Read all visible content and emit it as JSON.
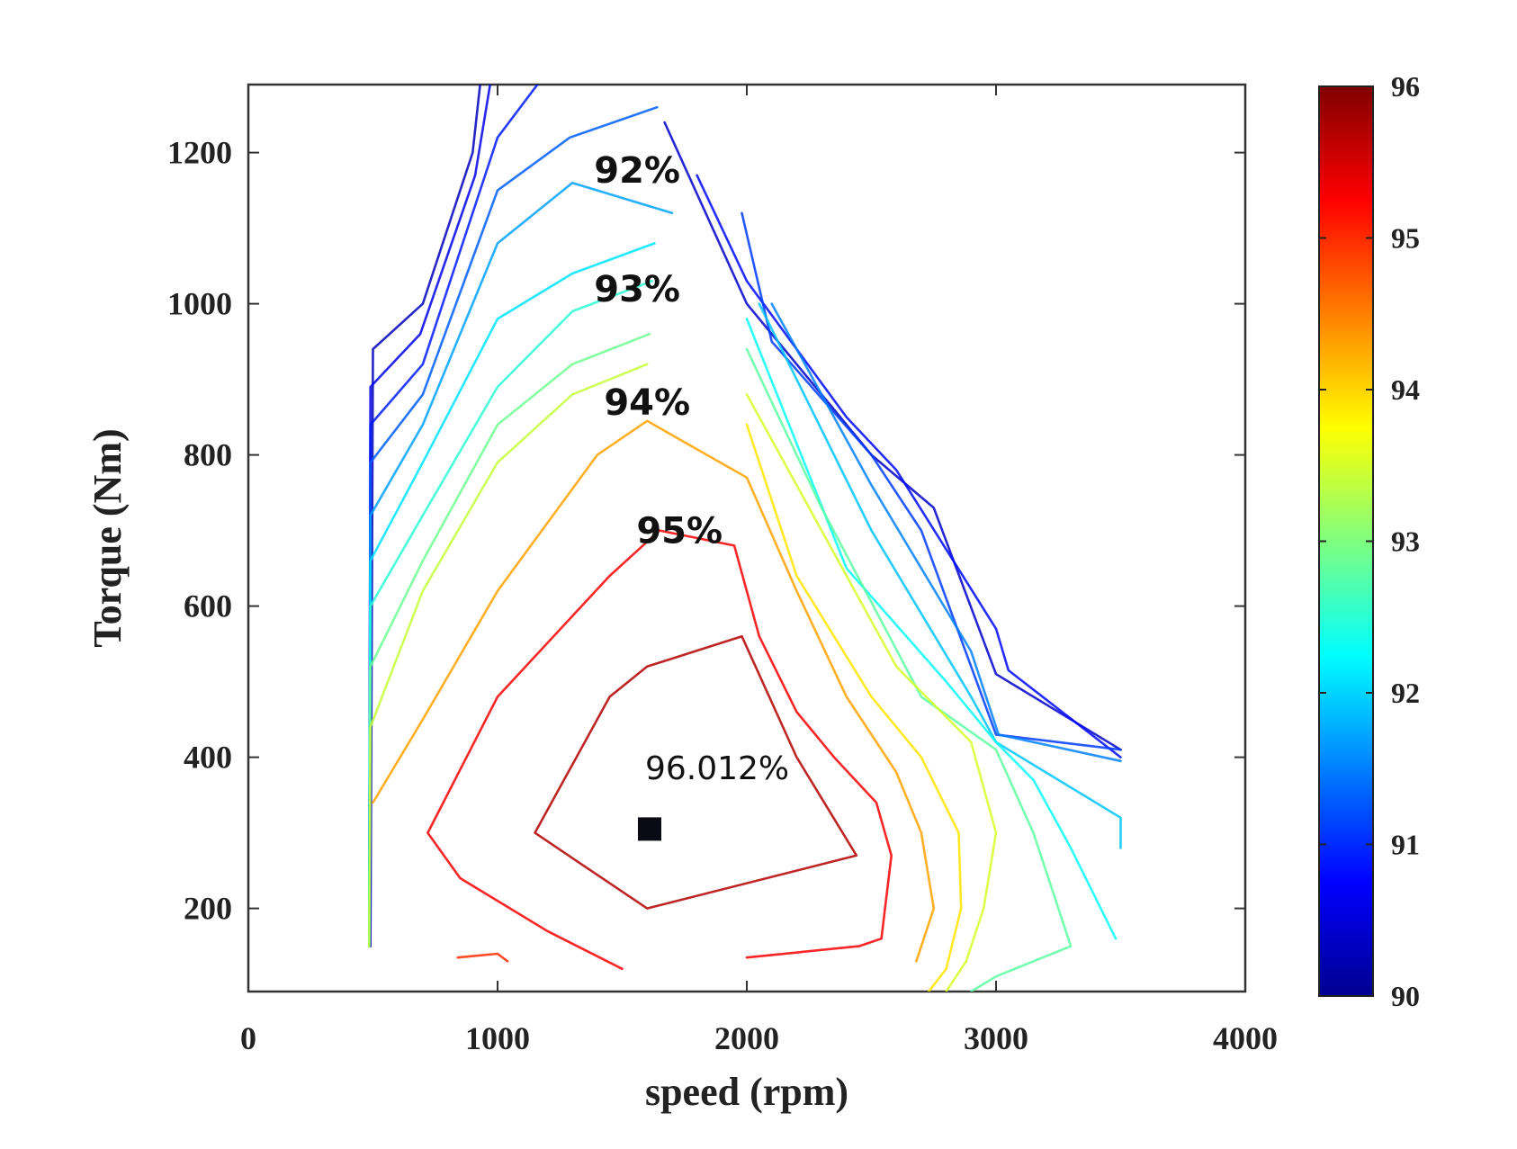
{
  "chart_data": {
    "type": "contour",
    "xlabel": "speed (rpm)",
    "ylabel": "Torque (Nm)",
    "xlim": [
      0,
      4000
    ],
    "ylim": [
      90,
      1290
    ],
    "xticks": [
      0,
      1000,
      2000,
      3000,
      4000
    ],
    "yticks": [
      200,
      400,
      600,
      800,
      1000,
      1200
    ],
    "colorbar": {
      "range": [
        90,
        96
      ],
      "ticks": [
        90,
        91,
        92,
        93,
        94,
        95,
        96
      ],
      "colormap": [
        "#00008f",
        "#0000ff",
        "#00ffff",
        "#ffff00",
        "#ff0000",
        "#800000"
      ]
    },
    "contour_labels": [
      {
        "text": "92%",
        "x": 1560,
        "y": 1177
      },
      {
        "text": "93%",
        "x": 1560,
        "y": 1020
      },
      {
        "text": "94%",
        "x": 1600,
        "y": 870
      },
      {
        "text": "95%",
        "x": 1730,
        "y": 700
      }
    ],
    "optimum": {
      "label": "96.012%",
      "x": 1610,
      "y": 305,
      "label_x": 1610,
      "label_y": 385
    },
    "contours": [
      {
        "level": 90.3,
        "points": [
          [
            930,
            1290
          ],
          [
            900,
            1200
          ],
          [
            700,
            1000
          ],
          [
            500,
            940
          ],
          [
            490,
            150
          ]
        ]
      },
      {
        "level": 90.6,
        "points": [
          [
            970,
            1290
          ],
          [
            910,
            1170
          ],
          [
            690,
            960
          ],
          [
            490,
            890
          ],
          [
            485,
            150
          ]
        ]
      },
      {
        "level": 90.9,
        "points": [
          [
            1160,
            1290
          ],
          [
            1000,
            1220
          ],
          [
            700,
            920
          ],
          [
            490,
            840
          ],
          [
            485,
            150
          ]
        ]
      },
      {
        "level": 91.3,
        "points": [
          [
            1640,
            1260
          ],
          [
            1290,
            1220
          ],
          [
            1000,
            1150
          ],
          [
            700,
            880
          ],
          [
            490,
            790
          ],
          [
            485,
            150
          ]
        ]
      },
      {
        "level": 91.7,
        "points": [
          [
            1700,
            1120
          ],
          [
            1300,
            1160
          ],
          [
            1000,
            1080
          ],
          [
            700,
            840
          ],
          [
            490,
            720
          ],
          [
            485,
            150
          ]
        ]
      },
      {
        "level": 92.1,
        "points": [
          [
            1630,
            1080
          ],
          [
            1300,
            1040
          ],
          [
            1000,
            980
          ],
          [
            700,
            790
          ],
          [
            490,
            660
          ],
          [
            485,
            150
          ]
        ]
      },
      {
        "level": 92.5,
        "points": [
          [
            1620,
            1030
          ],
          [
            1300,
            990
          ],
          [
            1000,
            890
          ],
          [
            700,
            720
          ],
          [
            490,
            600
          ],
          [
            485,
            150
          ]
        ]
      },
      {
        "level": 92.9,
        "points": [
          [
            1610,
            960
          ],
          [
            1300,
            920
          ],
          [
            1000,
            840
          ],
          [
            700,
            660
          ],
          [
            490,
            520
          ],
          [
            485,
            150
          ]
        ]
      },
      {
        "level": 93.4,
        "points": [
          [
            1600,
            920
          ],
          [
            1300,
            880
          ],
          [
            1000,
            790
          ],
          [
            700,
            620
          ],
          [
            490,
            440
          ],
          [
            485,
            150
          ]
        ]
      },
      {
        "level": 94.3,
        "points": [
          [
            500,
            340
          ],
          [
            700,
            450
          ],
          [
            1000,
            620
          ],
          [
            1400,
            800
          ],
          [
            1600,
            845
          ],
          [
            2000,
            770
          ],
          [
            2200,
            620
          ],
          [
            2400,
            480
          ],
          [
            2600,
            380
          ],
          [
            2700,
            300
          ],
          [
            2750,
            200
          ],
          [
            2680,
            130
          ]
        ]
      },
      {
        "level": 95.3,
        "points": [
          [
            1500,
            120
          ],
          [
            1200,
            170
          ],
          [
            850,
            240
          ],
          [
            720,
            300
          ],
          [
            1000,
            480
          ],
          [
            1450,
            640
          ],
          [
            1650,
            700
          ],
          [
            1950,
            680
          ],
          [
            2050,
            560
          ],
          [
            2200,
            460
          ],
          [
            2350,
            400
          ],
          [
            2520,
            340
          ],
          [
            2580,
            270
          ],
          [
            2540,
            160
          ],
          [
            2450,
            150
          ],
          [
            2000,
            135
          ]
        ]
      },
      {
        "level": 95.7,
        "points": [
          [
            1600,
            200
          ],
          [
            1150,
            300
          ],
          [
            1450,
            480
          ],
          [
            1600,
            520
          ],
          [
            1980,
            560
          ],
          [
            2200,
            400
          ],
          [
            2440,
            270
          ],
          [
            1600,
            200
          ]
        ]
      },
      {
        "level": 95.0,
        "points": [
          [
            840,
            135
          ],
          [
            1000,
            140
          ],
          [
            1040,
            130
          ]
        ]
      },
      {
        "level": 90.4,
        "points": [
          [
            1670,
            1240
          ],
          [
            2000,
            1000
          ],
          [
            2500,
            800
          ],
          [
            2750,
            730
          ],
          [
            3000,
            510
          ],
          [
            3500,
            410
          ]
        ]
      },
      {
        "level": 90.8,
        "points": [
          [
            1800,
            1170
          ],
          [
            2000,
            1030
          ],
          [
            2400,
            850
          ],
          [
            2600,
            780
          ],
          [
            3000,
            570
          ],
          [
            3050,
            515
          ],
          [
            3500,
            400
          ]
        ]
      },
      {
        "level": 91.1,
        "points": [
          [
            1980,
            1120
          ],
          [
            2100,
            950
          ],
          [
            2500,
            800
          ],
          [
            2700,
            700
          ],
          [
            3000,
            430
          ],
          [
            3500,
            410
          ]
        ]
      },
      {
        "level": 91.5,
        "points": [
          [
            2100,
            1000
          ],
          [
            2500,
            760
          ],
          [
            2900,
            540
          ],
          [
            3010,
            430
          ],
          [
            3500,
            395
          ]
        ]
      },
      {
        "level": 91.9,
        "points": [
          [
            2050,
            1000
          ],
          [
            2500,
            700
          ],
          [
            2900,
            480
          ],
          [
            3000,
            420
          ],
          [
            3500,
            320
          ],
          [
            3500,
            280
          ]
        ]
      },
      {
        "level": 92.3,
        "points": [
          [
            2000,
            980
          ],
          [
            2400,
            650
          ],
          [
            2800,
            500
          ],
          [
            3000,
            420
          ],
          [
            3150,
            370
          ],
          [
            3300,
            280
          ],
          [
            3480,
            160
          ]
        ]
      },
      {
        "level": 92.8,
        "points": [
          [
            2000,
            940
          ],
          [
            2300,
            730
          ],
          [
            2700,
            480
          ],
          [
            3000,
            410
          ],
          [
            3150,
            300
          ],
          [
            3250,
            200
          ],
          [
            3300,
            150
          ],
          [
            3000,
            110
          ],
          [
            2900,
            90
          ]
        ]
      },
      {
        "level": 93.5,
        "points": [
          [
            2000,
            880
          ],
          [
            2300,
            700
          ],
          [
            2600,
            520
          ],
          [
            2900,
            420
          ],
          [
            3000,
            300
          ],
          [
            2950,
            200
          ],
          [
            2880,
            130
          ],
          [
            2800,
            90
          ]
        ]
      },
      {
        "level": 93.9,
        "points": [
          [
            2000,
            840
          ],
          [
            2200,
            640
          ],
          [
            2500,
            480
          ],
          [
            2700,
            400
          ],
          [
            2850,
            300
          ],
          [
            2860,
            200
          ],
          [
            2800,
            120
          ],
          [
            2730,
            90
          ]
        ]
      }
    ]
  }
}
